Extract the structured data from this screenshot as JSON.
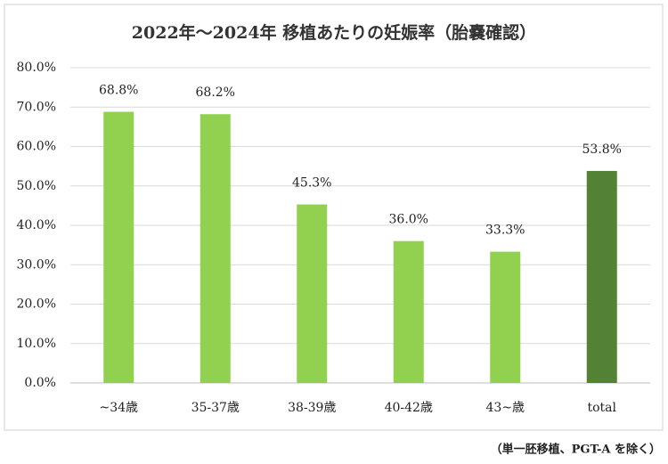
{
  "chart_data": {
    "type": "bar",
    "title": "2022年～2024年 移植あたりの妊娠率（胎嚢確認）",
    "categories": [
      "~34歳",
      "35-37歳",
      "38-39歳",
      "40-42歳",
      "43~歳",
      "total"
    ],
    "values": [
      68.8,
      68.2,
      45.3,
      36.0,
      33.3,
      53.8
    ],
    "value_labels": [
      "68.8%",
      "68.2%",
      "45.3%",
      "36.0%",
      "33.3%",
      "53.8%"
    ],
    "colors": [
      "#92d050",
      "#92d050",
      "#92d050",
      "#92d050",
      "#92d050",
      "#548235"
    ],
    "ylim": [
      0,
      80
    ],
    "yticks": [
      {
        "value": 0,
        "label": "0.0%"
      },
      {
        "value": 10,
        "label": "10.0%"
      },
      {
        "value": 20,
        "label": "20.0%"
      },
      {
        "value": 30,
        "label": "30.0%"
      },
      {
        "value": 40,
        "label": "40.0%"
      },
      {
        "value": 50,
        "label": "50.0%"
      },
      {
        "value": 60,
        "label": "60.0%"
      },
      {
        "value": 70,
        "label": "70.0%"
      },
      {
        "value": 80,
        "label": "80.0%"
      }
    ],
    "grid": true,
    "note": "（単一胚移植、PGT-A を除く）"
  }
}
